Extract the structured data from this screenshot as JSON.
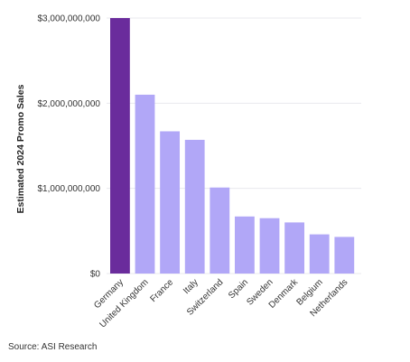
{
  "chart_data": {
    "type": "bar",
    "ylabel": "Estimated 2024 Promo Sales",
    "xlabel": "",
    "categories": [
      "Germany",
      "United Kingdom",
      "France",
      "Italy",
      "Switzerland",
      "Spain",
      "Sweden",
      "Denmark",
      "Belgium",
      "Netherlands"
    ],
    "values": [
      3000000000,
      2100000000,
      1670000000,
      1570000000,
      1010000000,
      670000000,
      650000000,
      600000000,
      460000000,
      430000000
    ],
    "ylim": [
      0,
      3000000000
    ],
    "yticks": [
      0,
      1000000000,
      2000000000,
      3000000000
    ],
    "ytick_labels": [
      "$0",
      "$1,000,000,000",
      "$2,000,000,000",
      "$3,000,000,000"
    ],
    "grid": true,
    "colors": {
      "highlight": "#6a2c9c",
      "bar": "#b1a7f7",
      "grid": "#e9e9ee"
    }
  },
  "footer": {
    "source": "Source: ASI Research"
  }
}
